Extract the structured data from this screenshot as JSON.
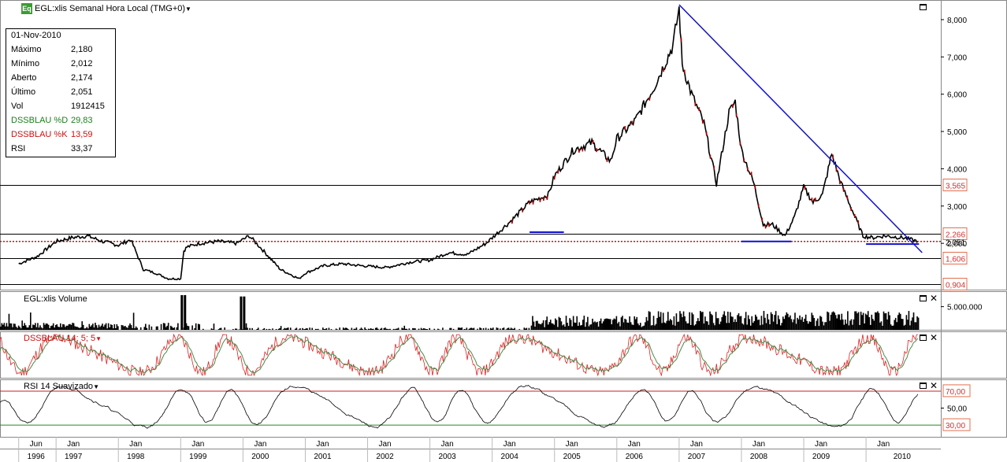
{
  "header": {
    "logo_text": "Eq",
    "title": "EGL:xlis Semanal Hora Local (TMG+0)"
  },
  "infobox": {
    "date": "01-Nov-2010",
    "rows": [
      {
        "label": "Máximo",
        "value": "2,180",
        "color": "#000000"
      },
      {
        "label": "Mínimo",
        "value": "2,012",
        "color": "#000000"
      },
      {
        "label": "Aberto",
        "value": "2,174",
        "color": "#000000"
      },
      {
        "label": "Último",
        "value": "2,051",
        "color": "#000000"
      },
      {
        "label": "Vol",
        "value": "1912415",
        "color": "#000000"
      },
      {
        "label": "DSSBLAU %D",
        "value": "29,83",
        "color": "#1a7f1a"
      },
      {
        "label": "DSSBLAU %K",
        "value": "13,59",
        "color": "#cc1111"
      },
      {
        "label": "RSI",
        "value": "33,37",
        "color": "#000000"
      }
    ]
  },
  "panes": {
    "volume_title": "EGL:xlis Volume",
    "dss_title": "DSSBLAU 14; 5; 5",
    "rsi_title": "RSI 14 Suavizado"
  },
  "chart_data": [
    {
      "type": "line",
      "name": "price",
      "y_ticks": [
        "8,000",
        "7,000",
        "6,000",
        "5,000",
        "4,000",
        "3,000",
        "2,000"
      ],
      "y_tick_values": [
        8,
        7,
        6,
        5,
        4,
        3,
        2
      ],
      "ylim": [
        0.8,
        8.4
      ],
      "levels": [
        {
          "label": "3,565",
          "value": 3.565
        },
        {
          "label": "2,266",
          "value": 2.266
        },
        {
          "label": "1,606",
          "value": 1.606
        },
        {
          "label": "0,904",
          "value": 0.904
        }
      ],
      "last_price": {
        "label": "2,051",
        "value": 2.051,
        "color": "#cc1111"
      },
      "series": [
        {
          "name": "",
          "x": [
            1996.4,
            1996.7,
            1997.0,
            1997.25,
            1997.5,
            1997.75,
            1998.0,
            1998.2,
            1998.4,
            1998.6,
            1998.8,
            1999.0,
            1999.05,
            1999.1,
            1999.3,
            1999.6,
            1999.9,
            2000.1,
            2000.3,
            2000.6,
            2000.9,
            2001.0,
            2001.3,
            2001.6,
            2001.9,
            2002.3,
            2002.7,
            2003.0,
            2003.3,
            2003.6,
            2003.9,
            2004.1,
            2004.3,
            2004.6,
            2004.9,
            2005.0,
            2005.3,
            2005.6,
            2005.9,
            2006.0,
            2006.3,
            2006.6,
            2006.9,
            2007.0,
            2007.05,
            2007.2,
            2007.4,
            2007.6,
            2007.8,
            2007.9,
            2008.0,
            2008.2,
            2008.35,
            2008.5,
            2008.7,
            2008.85,
            2009.0,
            2009.15,
            2009.3,
            2009.45,
            2009.6,
            2009.8,
            2009.95,
            2010.1,
            2010.3,
            2010.6,
            2010.84
          ],
          "y": [
            1.45,
            1.65,
            2.05,
            2.15,
            2.2,
            2.05,
            1.95,
            2.1,
            1.3,
            1.2,
            1.05,
            1.05,
            1.8,
            1.9,
            2.0,
            2.05,
            2.0,
            2.2,
            1.85,
            1.3,
            1.05,
            1.2,
            1.4,
            1.45,
            1.4,
            1.35,
            1.5,
            1.55,
            1.75,
            1.7,
            2.0,
            2.3,
            2.6,
            3.1,
            3.3,
            3.8,
            4.5,
            4.7,
            4.2,
            4.8,
            5.3,
            6.2,
            7.3,
            8.3,
            6.8,
            6.0,
            5.2,
            3.6,
            5.5,
            5.8,
            4.5,
            3.6,
            2.5,
            2.5,
            2.2,
            2.7,
            3.5,
            3.1,
            3.3,
            4.4,
            3.6,
            2.8,
            2.2,
            2.15,
            2.2,
            2.15,
            2.05
          ]
        }
      ],
      "trend_line": {
        "x": [
          2007.0,
          2010.9
        ],
        "y": [
          8.4,
          1.75
        ]
      },
      "support_lines": [
        {
          "x": [
            2004.6,
            2005.15
          ],
          "y": 2.3
        },
        {
          "x": [
            2008.0,
            2008.8
          ],
          "y": 2.05
        },
        {
          "x": [
            2010.0,
            2010.85
          ],
          "y": 1.98
        }
      ]
    },
    {
      "type": "bar",
      "name": "volume",
      "y_ticks": [
        "5.000.000"
      ],
      "y_tick_values": [
        5000000
      ],
      "ylim": [
        0,
        8000000
      ]
    },
    {
      "type": "line",
      "name": "dssblau",
      "series": [
        {
          "name": "",
          "color": "#dd2222"
        },
        {
          "name": "",
          "color": "#4a8a4a"
        }
      ],
      "ylim": [
        0,
        100
      ]
    },
    {
      "type": "line",
      "name": "rsi",
      "levels": [
        {
          "label": "70,00",
          "value": 70,
          "color": "#cc2222"
        },
        {
          "label": "30,00",
          "value": 30,
          "color": "#228822"
        }
      ],
      "y_ticks": [
        "50,00"
      ],
      "y_tick_values": [
        50
      ],
      "ylim": [
        18,
        82
      ]
    }
  ],
  "x_axis": {
    "month_labels": [
      "Jun",
      "Jan",
      "Jan",
      "Jan",
      "Jan",
      "Jan",
      "Jan",
      "Jan",
      "Jan",
      "Jan",
      "Jan",
      "Jan",
      "Jan",
      "Jan",
      "Jan"
    ],
    "month_positions": [
      1996.4,
      1997.0,
      1998.0,
      1999.0,
      2000.0,
      2001.0,
      2002.0,
      2003.0,
      2004.0,
      2005.0,
      2006.0,
      2007.0,
      2008.0,
      2009.0,
      2010.0
    ],
    "year_labels": [
      "1996",
      "1997",
      "1998",
      "1999",
      "2000",
      "2001",
      "2002",
      "2003",
      "2004",
      "2005",
      "2006",
      "2007",
      "2008",
      "2009",
      "2010"
    ],
    "year_positions": [
      1996.4,
      1997.0,
      1998.0,
      1999.0,
      2000.0,
      2001.0,
      2002.0,
      2003.0,
      2004.0,
      2005.0,
      2006.0,
      2007.0,
      2008.0,
      2009.0,
      2010.3
    ]
  }
}
